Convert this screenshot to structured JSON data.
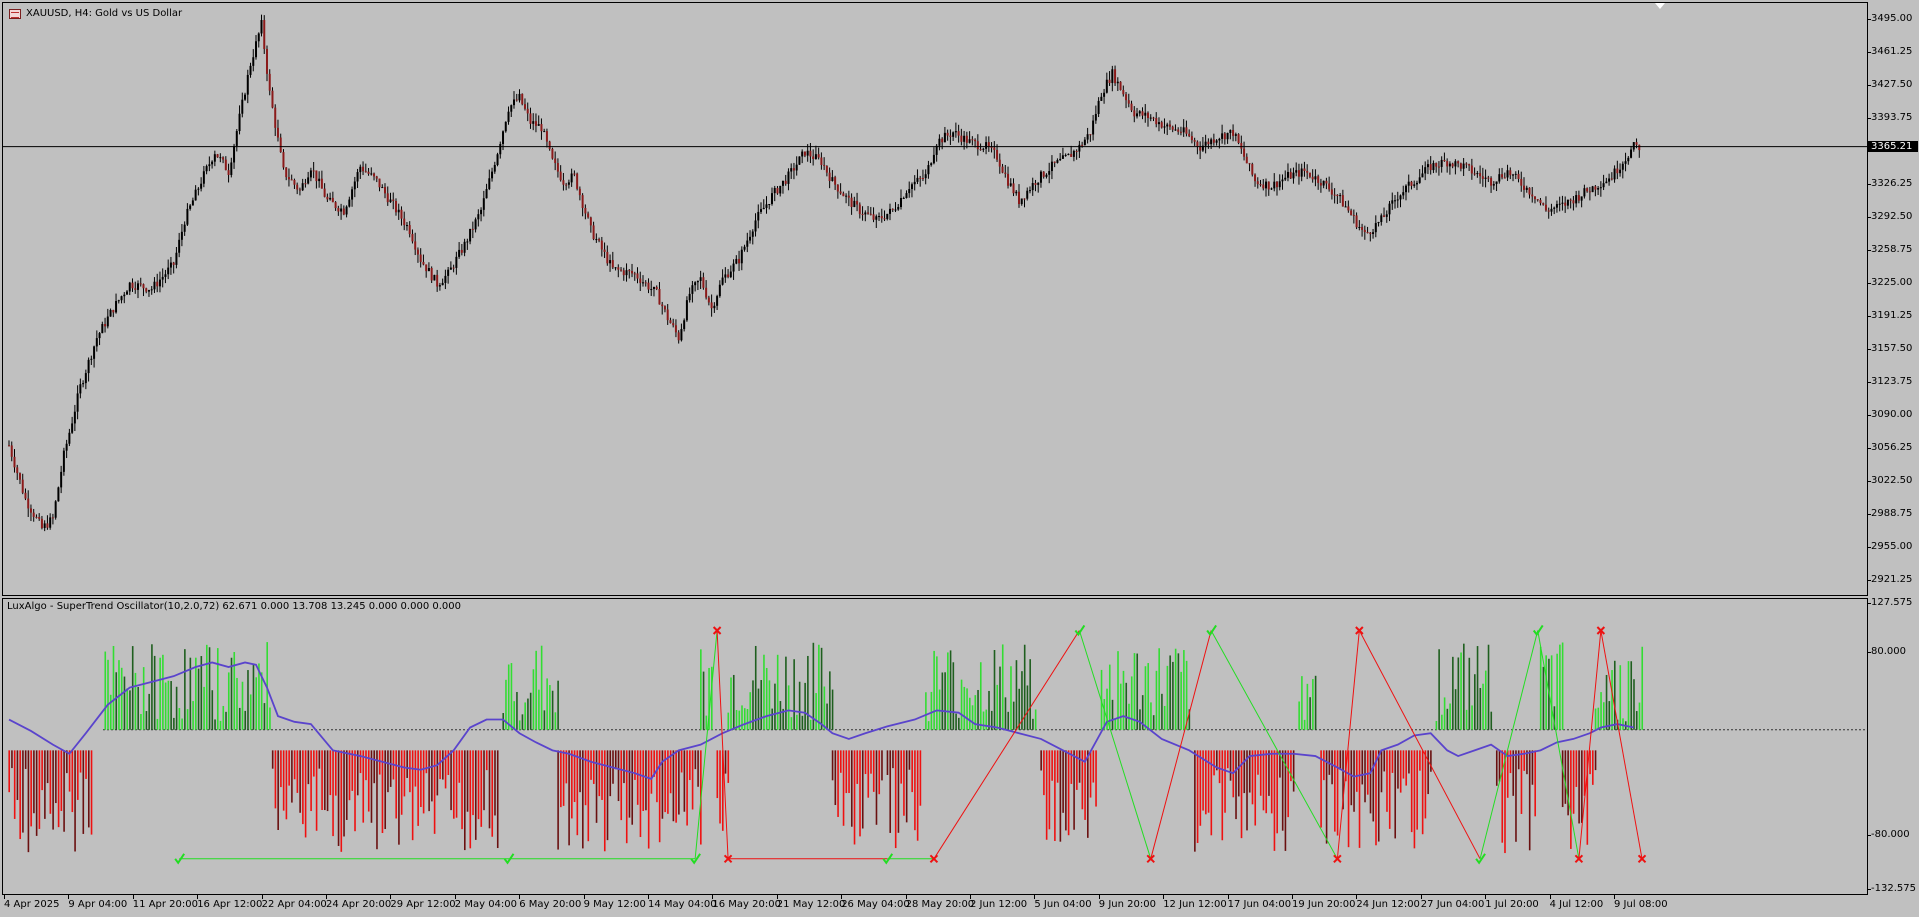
{
  "window": {
    "title": "XAUUSD, H4:  Gold vs US Dollar",
    "icon": "chart-window-icon"
  },
  "price_axis": {
    "ticks": [
      "3495.00",
      "3461.25",
      "3427.50",
      "3393.75",
      "3326.25",
      "3292.50",
      "3258.75",
      "3225.00",
      "3191.25",
      "3157.50",
      "3123.75",
      "3090.00",
      "3056.25",
      "3022.50",
      "2988.75",
      "2955.00",
      "2921.25"
    ],
    "current_price": "3365.21"
  },
  "oscillator": {
    "title": "LuxAlgo - SuperTrend Oscillator(10,2.0,72) 62.671 0.000 13.708 13.245 0.000 0.000 0.000",
    "ticks": [
      "127.575",
      "80.000",
      "-80.000",
      "-132.575"
    ]
  },
  "time_axis": {
    "labels": [
      "4 Apr 2025",
      "9 Apr 04:00",
      "11 Apr 20:00",
      "16 Apr 12:00",
      "22 Apr 04:00",
      "24 Apr 20:00",
      "29 Apr 12:00",
      "2 May 04:00",
      "6 May 20:00",
      "9 May 12:00",
      "14 May 04:00",
      "16 May 20:00",
      "21 May 12:00",
      "26 May 04:00",
      "28 May 20:00",
      "2 Jun 12:00",
      "5 Jun 04:00",
      "9 Jun 20:00",
      "12 Jun 12:00",
      "17 Jun 04:00",
      "19 Jun 20:00",
      "24 Jun 12:00",
      "27 Jun 04:00",
      "1 Jul 20:00",
      "4 Jul 12:00",
      "9 Jul 08:00"
    ]
  },
  "colors": {
    "background": "#c0c0c0",
    "bull_candle": "#000000",
    "bear_candle": "#8b1a1a",
    "osc_bull_bright": "#33dd33",
    "osc_bull_dark": "#1f5f1f",
    "osc_bear_bright": "#ee1111",
    "osc_bear_dark": "#6a1010",
    "signal_line": "#5a44cc",
    "buy_marker": "#22dd22",
    "sell_marker": "#ee1111"
  },
  "chart_data": {
    "type": "candlestick",
    "symbol": "XAUUSD",
    "timeframe": "H4",
    "ylim": [
      2905,
      3512
    ],
    "close_path": [
      [
        0,
        3060
      ],
      [
        6,
        3005
      ],
      [
        12,
        2975
      ],
      [
        16,
        2985
      ],
      [
        20,
        3050
      ],
      [
        26,
        3120
      ],
      [
        32,
        3170
      ],
      [
        38,
        3200
      ],
      [
        44,
        3225
      ],
      [
        52,
        3220
      ],
      [
        60,
        3245
      ],
      [
        64,
        3290
      ],
      [
        70,
        3330
      ],
      [
        75,
        3360
      ],
      [
        80,
        3340
      ],
      [
        84,
        3395
      ],
      [
        88,
        3450
      ],
      [
        92,
        3490
      ],
      [
        95,
        3420
      ],
      [
        100,
        3340
      ],
      [
        106,
        3320
      ],
      [
        110,
        3345
      ],
      [
        116,
        3310
      ],
      [
        122,
        3300
      ],
      [
        128,
        3345
      ],
      [
        134,
        3330
      ],
      [
        140,
        3305
      ],
      [
        146,
        3280
      ],
      [
        150,
        3250
      ],
      [
        156,
        3225
      ],
      [
        160,
        3235
      ],
      [
        166,
        3265
      ],
      [
        172,
        3300
      ],
      [
        178,
        3360
      ],
      [
        182,
        3405
      ],
      [
        186,
        3415
      ],
      [
        190,
        3390
      ],
      [
        194,
        3385
      ],
      [
        198,
        3350
      ],
      [
        202,
        3330
      ],
      [
        206,
        3335
      ],
      [
        212,
        3280
      ],
      [
        220,
        3240
      ],
      [
        228,
        3235
      ],
      [
        236,
        3215
      ],
      [
        240,
        3190
      ],
      [
        244,
        3170
      ],
      [
        248,
        3215
      ],
      [
        252,
        3230
      ],
      [
        256,
        3200
      ],
      [
        260,
        3230
      ],
      [
        266,
        3250
      ],
      [
        272,
        3290
      ],
      [
        278,
        3315
      ],
      [
        284,
        3335
      ],
      [
        290,
        3360
      ],
      [
        296,
        3350
      ],
      [
        300,
        3330
      ],
      [
        306,
        3310
      ],
      [
        310,
        3300
      ],
      [
        316,
        3290
      ],
      [
        322,
        3300
      ],
      [
        328,
        3325
      ],
      [
        334,
        3335
      ],
      [
        338,
        3370
      ],
      [
        344,
        3380
      ],
      [
        350,
        3370
      ],
      [
        356,
        3365
      ],
      [
        360,
        3355
      ],
      [
        364,
        3330
      ],
      [
        368,
        3310
      ],
      [
        374,
        3330
      ],
      [
        380,
        3345
      ],
      [
        386,
        3355
      ],
      [
        390,
        3365
      ],
      [
        394,
        3380
      ],
      [
        398,
        3420
      ],
      [
        402,
        3440
      ],
      [
        406,
        3420
      ],
      [
        410,
        3400
      ],
      [
        416,
        3395
      ],
      [
        422,
        3385
      ],
      [
        428,
        3380
      ],
      [
        434,
        3365
      ],
      [
        440,
        3375
      ],
      [
        446,
        3380
      ],
      [
        450,
        3355
      ],
      [
        454,
        3330
      ],
      [
        460,
        3325
      ],
      [
        466,
        3335
      ],
      [
        472,
        3340
      ],
      [
        478,
        3330
      ],
      [
        484,
        3315
      ],
      [
        488,
        3300
      ],
      [
        494,
        3275
      ],
      [
        500,
        3290
      ],
      [
        506,
        3315
      ],
      [
        512,
        3330
      ],
      [
        518,
        3345
      ],
      [
        524,
        3350
      ],
      [
        530,
        3345
      ],
      [
        536,
        3335
      ],
      [
        540,
        3330
      ],
      [
        546,
        3340
      ],
      [
        552,
        3325
      ],
      [
        556,
        3315
      ],
      [
        560,
        3300
      ],
      [
        566,
        3305
      ],
      [
        572,
        3315
      ],
      [
        578,
        3325
      ],
      [
        584,
        3335
      ],
      [
        588,
        3350
      ],
      [
        592,
        3365
      ]
    ],
    "oscillator": {
      "type": "histogram",
      "ylim": [
        -132.575,
        127.575
      ],
      "signal_path": [
        [
          0,
          22
        ],
        [
          8,
          12
        ],
        [
          16,
          0
        ],
        [
          22,
          -8
        ],
        [
          28,
          10
        ],
        [
          36,
          35
        ],
        [
          44,
          50
        ],
        [
          52,
          55
        ],
        [
          60,
          60
        ],
        [
          68,
          68
        ],
        [
          74,
          72
        ],
        [
          80,
          68
        ],
        [
          86,
          72
        ],
        [
          90,
          70
        ],
        [
          94,
          50
        ],
        [
          98,
          25
        ],
        [
          104,
          20
        ],
        [
          110,
          18
        ],
        [
          118,
          -5
        ],
        [
          128,
          -10
        ],
        [
          136,
          -15
        ],
        [
          144,
          -20
        ],
        [
          150,
          -22
        ],
        [
          156,
          -18
        ],
        [
          162,
          -5
        ],
        [
          168,
          15
        ],
        [
          174,
          22
        ],
        [
          180,
          22
        ],
        [
          186,
          10
        ],
        [
          192,
          2
        ],
        [
          198,
          -5
        ],
        [
          204,
          -8
        ],
        [
          212,
          -15
        ],
        [
          220,
          -20
        ],
        [
          228,
          -25
        ],
        [
          234,
          -30
        ],
        [
          238,
          -15
        ],
        [
          244,
          -5
        ],
        [
          252,
          0
        ],
        [
          260,
          10
        ],
        [
          268,
          18
        ],
        [
          276,
          25
        ],
        [
          284,
          30
        ],
        [
          290,
          28
        ],
        [
          296,
          18
        ],
        [
          300,
          10
        ],
        [
          306,
          5
        ],
        [
          312,
          10
        ],
        [
          320,
          16
        ],
        [
          330,
          22
        ],
        [
          338,
          30
        ],
        [
          346,
          28
        ],
        [
          352,
          18
        ],
        [
          360,
          15
        ],
        [
          368,
          10
        ],
        [
          376,
          5
        ],
        [
          384,
          -5
        ],
        [
          392,
          -15
        ],
        [
          400,
          20
        ],
        [
          406,
          25
        ],
        [
          412,
          20
        ],
        [
          420,
          5
        ],
        [
          430,
          -5
        ],
        [
          440,
          -20
        ],
        [
          446,
          -25
        ],
        [
          452,
          -10
        ],
        [
          460,
          -8
        ],
        [
          468,
          -8
        ],
        [
          476,
          -10
        ],
        [
          484,
          -20
        ],
        [
          490,
          -28
        ],
        [
          496,
          -25
        ],
        [
          500,
          -5
        ],
        [
          506,
          0
        ],
        [
          512,
          8
        ],
        [
          518,
          10
        ],
        [
          524,
          -5
        ],
        [
          528,
          -10
        ],
        [
          534,
          -5
        ],
        [
          540,
          0
        ],
        [
          546,
          -10
        ],
        [
          552,
          -8
        ],
        [
          558,
          -5
        ],
        [
          564,
          2
        ],
        [
          570,
          5
        ],
        [
          576,
          10
        ],
        [
          580,
          15
        ],
        [
          586,
          18
        ],
        [
          592,
          15
        ]
      ],
      "bull_zero_line": 13,
      "signals": [
        {
          "type": "buy",
          "t": 62,
          "v": -100
        },
        {
          "type": "buy",
          "t": 182,
          "v": -100
        },
        {
          "type": "buy",
          "t": 250,
          "v": -100
        },
        {
          "type": "sell",
          "t": 258,
          "v": 100
        },
        {
          "type": "sell",
          "t": 262,
          "v": -100
        },
        {
          "type": "buy",
          "t": 320,
          "v": -100
        },
        {
          "type": "sell",
          "t": 337,
          "v": -100
        },
        {
          "type": "buy",
          "t": 390,
          "v": 100
        },
        {
          "type": "sell",
          "t": 416,
          "v": -100
        },
        {
          "type": "buy",
          "t": 438,
          "v": 100
        },
        {
          "type": "sell",
          "t": 484,
          "v": -100
        },
        {
          "type": "sell",
          "t": 492,
          "v": 100
        },
        {
          "type": "buy",
          "t": 536,
          "v": -100
        },
        {
          "type": "buy",
          "t": 557,
          "v": 100
        },
        {
          "type": "sell",
          "t": 572,
          "v": -100
        },
        {
          "type": "sell",
          "t": 580,
          "v": 100
        },
        {
          "type": "sell",
          "t": 595,
          "v": -100
        }
      ]
    }
  }
}
